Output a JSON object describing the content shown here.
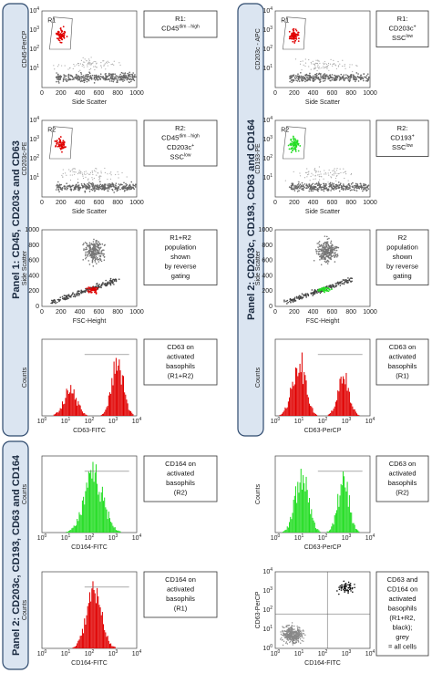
{
  "side_labels": [
    "Panel 1: CD45, CD203c and CD63",
    "Panel 2: CD203c, CD193, CD63 and CD164",
    "Panel 2: CD203c, CD193, CD63 and CD164"
  ],
  "panels": [
    {
      "kind": "gate",
      "color": "#e00000",
      "gate": "R1",
      "xlabel": "Side Scatter",
      "ylabel": "CD45-PerCP",
      "xticks": [
        "0",
        "200",
        "400",
        "600",
        "800",
        "1000"
      ],
      "yticks": [
        {
          "base": "10",
          "sup": "1"
        },
        {
          "base": "10",
          "sup": "2"
        },
        {
          "base": "10",
          "sup": "3"
        },
        {
          "base": "10",
          "sup": "4"
        }
      ],
      "note": [
        [
          {
            "text": "R1:"
          }
        ],
        [
          {
            "text": "CD45",
            "sup": "dim→high"
          }
        ]
      ]
    },
    {
      "kind": "gate",
      "color": "#e00000",
      "gate": "R2",
      "xlabel": "Side Scatter",
      "ylabel": "CD203c-PE",
      "xticks": [
        "0",
        "200",
        "400",
        "600",
        "800",
        "1000"
      ],
      "yticks": [
        {
          "base": "10",
          "sup": "1"
        },
        {
          "base": "10",
          "sup": "2"
        },
        {
          "base": "10",
          "sup": "3"
        },
        {
          "base": "10",
          "sup": "4"
        }
      ],
      "note": [
        [
          {
            "text": "R2:"
          }
        ],
        [
          {
            "text": "CD45",
            "sup": "dim→high"
          }
        ],
        [
          {
            "text": "CD203c",
            "sup": "+"
          }
        ],
        [
          {
            "text": "SSC",
            "sup": "low"
          }
        ]
      ]
    },
    {
      "kind": "backgate",
      "color": "#e00000",
      "xlabel": "FSC-Height",
      "ylabel": "Side Scatter",
      "xticks": [
        "0",
        "200",
        "400",
        "600",
        "800",
        "1000"
      ],
      "yticks": [
        "0",
        "200",
        "400",
        "600",
        "800",
        "1000"
      ],
      "note": [
        [
          {
            "text": "R1+R2"
          }
        ],
        [
          {
            "text": "population"
          }
        ],
        [
          {
            "text": "shown"
          }
        ],
        [
          {
            "text": "by reverse"
          }
        ],
        [
          {
            "text": "gating"
          }
        ]
      ]
    },
    {
      "kind": "hist",
      "color": "#e00000",
      "xlabel": "CD63-FITC",
      "ylabel": "Counts",
      "xticks": [
        {
          "base": "10",
          "sup": "0"
        },
        {
          "base": "10",
          "sup": "1"
        },
        {
          "base": "10",
          "sup": "2"
        },
        {
          "base": "10",
          "sup": "3"
        },
        {
          "base": "10",
          "sup": "4"
        }
      ],
      "note": [
        [
          {
            "text": "CD63 on"
          }
        ],
        [
          {
            "text": "activated"
          }
        ],
        [
          {
            "text": "basophils"
          }
        ],
        [
          {
            "text": "(R1+R2)"
          }
        ]
      ]
    },
    {
      "kind": "hist",
      "color": "#22dd22",
      "xlabel": "CD164-FITC",
      "ylabel": "Counts",
      "xticks": [
        {
          "base": "10",
          "sup": "0"
        },
        {
          "base": "10",
          "sup": "1"
        },
        {
          "base": "10",
          "sup": "2"
        },
        {
          "base": "10",
          "sup": "3"
        },
        {
          "base": "10",
          "sup": "4"
        }
      ],
      "note": [
        [
          {
            "text": "CD164 on"
          }
        ],
        [
          {
            "text": "activated"
          }
        ],
        [
          {
            "text": "basophils"
          }
        ],
        [
          {
            "text": "(R2)"
          }
        ]
      ]
    },
    {
      "kind": "hist",
      "color": "#e00000",
      "xlabel": "CD164-FITC",
      "ylabel": "Counts",
      "xticks": [
        {
          "base": "10",
          "sup": "0"
        },
        {
          "base": "10",
          "sup": "1"
        },
        {
          "base": "10",
          "sup": "2"
        },
        {
          "base": "10",
          "sup": "3"
        },
        {
          "base": "10",
          "sup": "4"
        }
      ],
      "note": [
        [
          {
            "text": "CD164 on"
          }
        ],
        [
          {
            "text": "activated"
          }
        ],
        [
          {
            "text": "basophils"
          }
        ],
        [
          {
            "text": "(R1)"
          }
        ]
      ]
    },
    {
      "kind": "gate",
      "color": "#e00000",
      "gate": "R1",
      "xlabel": "Side Scatter",
      "ylabel": "CD203c - APC",
      "xticks": [
        "0",
        "200",
        "400",
        "600",
        "800",
        "1000"
      ],
      "yticks": [
        {
          "base": "10",
          "sup": "1"
        },
        {
          "base": "10",
          "sup": "2"
        },
        {
          "base": "10",
          "sup": "3"
        },
        {
          "base": "10",
          "sup": "4"
        }
      ],
      "note": [
        [
          {
            "text": "R1:"
          }
        ],
        [
          {
            "text": "CD203c",
            "sup": "+"
          }
        ],
        [
          {
            "text": "SSC",
            "sup": "low"
          }
        ]
      ]
    },
    {
      "kind": "gate",
      "color": "#22dd22",
      "gate": "R2",
      "xlabel": "Side Scatter",
      "ylabel": "CD193-PE",
      "xticks": [
        "0",
        "200",
        "400",
        "600",
        "800",
        "1000"
      ],
      "yticks": [
        {
          "base": "10",
          "sup": "1"
        },
        {
          "base": "10",
          "sup": "2"
        },
        {
          "base": "10",
          "sup": "3"
        },
        {
          "base": "10",
          "sup": "4"
        }
      ],
      "note": [
        [
          {
            "text": "R2:"
          }
        ],
        [
          {
            "text": "CD193",
            "sup": "+"
          }
        ],
        [
          {
            "text": "SSC",
            "sup": "low"
          }
        ]
      ]
    },
    {
      "kind": "backgate",
      "color": "#22dd22",
      "xlabel": "FSC-Height",
      "ylabel": "Side Scatter",
      "xticks": [
        "0",
        "200",
        "400",
        "600",
        "800",
        "1000"
      ],
      "yticks": [
        "0",
        "200",
        "400",
        "600",
        "800",
        "1000"
      ],
      "note": [
        [
          {
            "text": "R2"
          }
        ],
        [
          {
            "text": "population"
          }
        ],
        [
          {
            "text": "shown"
          }
        ],
        [
          {
            "text": "by reverse"
          }
        ],
        [
          {
            "text": "gating"
          }
        ]
      ]
    },
    {
      "kind": "hist",
      "color": "#e00000",
      "xlabel": "CD63-PerCP",
      "ylabel": "Counts",
      "xticks": [
        {
          "base": "10",
          "sup": "0"
        },
        {
          "base": "10",
          "sup": "1"
        },
        {
          "base": "10",
          "sup": "2"
        },
        {
          "base": "10",
          "sup": "3"
        },
        {
          "base": "10",
          "sup": "4"
        }
      ],
      "note": [
        [
          {
            "text": "CD63 on"
          }
        ],
        [
          {
            "text": "activated"
          }
        ],
        [
          {
            "text": "basophils"
          }
        ],
        [
          {
            "text": "(R1)"
          }
        ]
      ]
    },
    {
      "kind": "hist",
      "color": "#22dd22",
      "xlabel": "CD63-PerCP",
      "ylabel": "Counts",
      "xticks": [
        {
          "base": "10",
          "sup": "0"
        },
        {
          "base": "10",
          "sup": "1"
        },
        {
          "base": "10",
          "sup": "2"
        },
        {
          "base": "10",
          "sup": "3"
        },
        {
          "base": "10",
          "sup": "4"
        }
      ],
      "note": [
        [
          {
            "text": "CD63 on"
          }
        ],
        [
          {
            "text": "activated"
          }
        ],
        [
          {
            "text": "basophils"
          }
        ],
        [
          {
            "text": "(R2)"
          }
        ]
      ]
    },
    {
      "kind": "dot",
      "color": "#111111",
      "xlabel": "CD164-FITC",
      "ylabel": "CD63-PerCP",
      "xticks": [
        {
          "base": "10",
          "sup": "0"
        },
        {
          "base": "10",
          "sup": "1"
        },
        {
          "base": "10",
          "sup": "2"
        },
        {
          "base": "10",
          "sup": "3"
        },
        {
          "base": "10",
          "sup": "4"
        }
      ],
      "yticks": [
        {
          "base": "10",
          "sup": "0"
        },
        {
          "base": "10",
          "sup": "1"
        },
        {
          "base": "10",
          "sup": "2"
        },
        {
          "base": "10",
          "sup": "3"
        },
        {
          "base": "10",
          "sup": "4"
        }
      ],
      "note": [
        [
          {
            "text": "CD63 and"
          }
        ],
        [
          {
            "text": "CD164 on"
          }
        ],
        [
          {
            "text": "activated"
          }
        ],
        [
          {
            "text": "basophils"
          }
        ],
        [
          {
            "text": "(R1+R2,"
          }
        ],
        [
          {
            "text": "black);"
          }
        ],
        [
          {
            "text": "grey"
          }
        ],
        [
          {
            "text": "= all cells"
          }
        ]
      ]
    }
  ]
}
